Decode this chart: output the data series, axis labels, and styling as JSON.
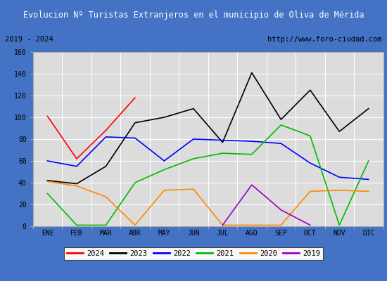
{
  "title": "Evolucion Nº Turistas Extranjeros en el municipio de Oliva de Mérida",
  "subtitle_left": "2019 - 2024",
  "subtitle_right": "http://www.foro-ciudad.com",
  "months": [
    "ENE",
    "FEB",
    "MAR",
    "ABR",
    "MAY",
    "JUN",
    "JUL",
    "AGO",
    "SEP",
    "OCT",
    "NOV",
    "DIC"
  ],
  "series": {
    "2024": {
      "color": "#ff0000",
      "values": [
        101,
        62,
        88,
        118,
        null,
        null,
        null,
        null,
        null,
        null,
        null,
        null
      ]
    },
    "2023": {
      "color": "#000000",
      "values": [
        42,
        39,
        55,
        95,
        100,
        108,
        77,
        141,
        98,
        125,
        87,
        108
      ]
    },
    "2022": {
      "color": "#0000ff",
      "values": [
        60,
        55,
        82,
        81,
        60,
        80,
        79,
        78,
        76,
        58,
        45,
        43
      ]
    },
    "2021": {
      "color": "#00bb00",
      "values": [
        30,
        1,
        1,
        40,
        52,
        62,
        67,
        66,
        93,
        83,
        1,
        60
      ]
    },
    "2020": {
      "color": "#ff8800",
      "values": [
        41,
        37,
        27,
        1,
        33,
        34,
        1,
        1,
        1,
        32,
        33,
        32
      ]
    },
    "2019": {
      "color": "#9900cc",
      "values": [
        null,
        null,
        null,
        null,
        null,
        null,
        1,
        38,
        15,
        1,
        null,
        null
      ]
    }
  },
  "ylim": [
    0,
    160
  ],
  "yticks": [
    0,
    20,
    40,
    60,
    80,
    100,
    120,
    140,
    160
  ],
  "title_bg_color": "#4472c4",
  "title_text_color": "#ffffff",
  "plot_bg_color": "#dcdcdc",
  "grid_color": "#ffffff",
  "outer_bg_color": "#4472c4",
  "subtitle_box_bg": "#f0f0f0",
  "legend_order": [
    "2024",
    "2023",
    "2022",
    "2021",
    "2020",
    "2019"
  ]
}
